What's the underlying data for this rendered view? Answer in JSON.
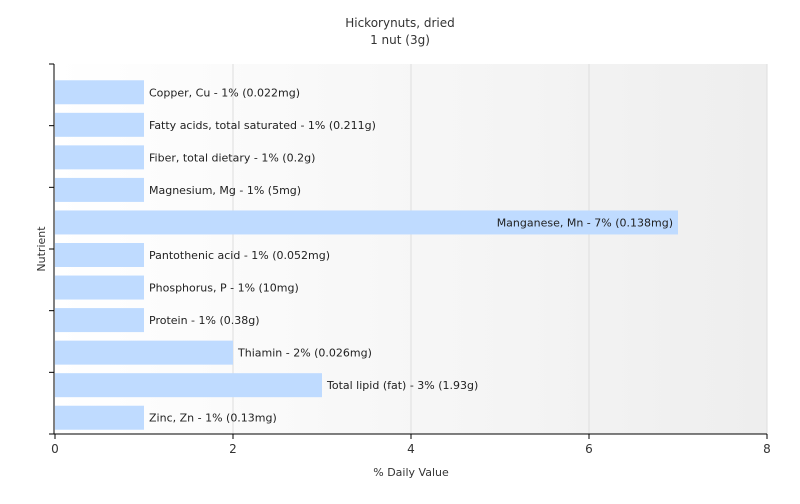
{
  "chart_data": {
    "type": "bar",
    "orientation": "horizontal",
    "title": "Hickorynuts, dried",
    "subtitle": "1 nut (3g)",
    "xlabel": "% Daily Value",
    "ylabel": "Nutrient",
    "xlim": [
      0,
      8
    ],
    "xticks": [
      0,
      2,
      4,
      6,
      8
    ],
    "grid": true,
    "bar_color": "#bfdbff",
    "categories": [
      "Copper, Cu",
      "Fatty acids, total saturated",
      "Fiber, total dietary",
      "Magnesium, Mg",
      "Manganese, Mn",
      "Pantothenic acid",
      "Phosphorus, P",
      "Protein",
      "Thiamin",
      "Total lipid (fat)",
      "Zinc, Zn"
    ],
    "values": [
      1,
      1,
      1,
      1,
      7,
      1,
      1,
      1,
      2,
      3,
      1
    ],
    "labels": [
      "Copper, Cu - 1% (0.022mg)",
      "Fatty acids, total saturated - 1% (0.211g)",
      "Fiber, total dietary - 1% (0.2g)",
      "Magnesium, Mg - 1% (5mg)",
      "Manganese, Mn - 7% (0.138mg)",
      "Pantothenic acid - 1% (0.052mg)",
      "Phosphorus, P - 1% (10mg)",
      "Protein - 1% (0.38g)",
      "Thiamin - 2% (0.026mg)",
      "Total lipid (fat) - 3% (1.93g)",
      "Zinc, Zn - 1% (0.13mg)"
    ]
  }
}
